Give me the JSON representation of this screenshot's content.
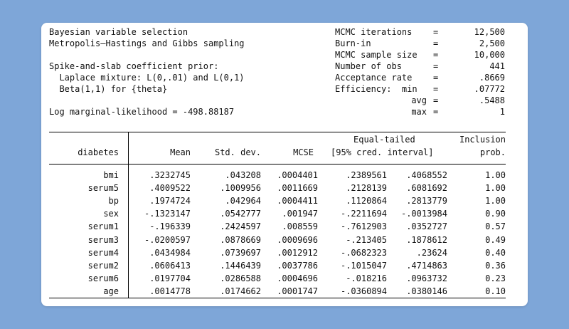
{
  "header_left": [
    "Bayesian variable selection",
    "Metropolis–Hastings and Gibbs sampling",
    "",
    "Spike-and-slab coefficient prior:",
    "  Laplace mixture: L(0,.01) and L(0,1)",
    "  Beta(1,1) for {theta}",
    "",
    "Log marginal-likelihood = -498.88187"
  ],
  "header_right": [
    {
      "label": "MCMC iterations",
      "eq": "=",
      "value": "12,500"
    },
    {
      "label": "Burn-in",
      "eq": "=",
      "value": "2,500"
    },
    {
      "label": "MCMC sample size",
      "eq": "=",
      "value": "10,000"
    },
    {
      "label": "Number of obs",
      "eq": "=",
      "value": "441"
    },
    {
      "label": "Acceptance rate",
      "eq": "=",
      "value": ".8669"
    },
    {
      "label": "Efficiency:  min",
      "eq": "=",
      "value": ".07772"
    },
    {
      "label": "avg",
      "eq": "=",
      "value": ".5488"
    },
    {
      "label": "max",
      "eq": "=",
      "value": "1"
    }
  ],
  "table": {
    "depvar": "diabetes",
    "header_top": {
      "interval": "Equal-tailed",
      "inclusion": "Inclusion"
    },
    "columns": [
      "Mean",
      "Std. dev.",
      "MCSE",
      "[95% cred. interval]",
      "prob."
    ],
    "rows": [
      {
        "name": "bmi",
        "mean": ".3232745",
        "sd": ".043208",
        "mcse": ".0004401",
        "lo": ".2389561",
        "hi": ".4068552",
        "prob": "1.00"
      },
      {
        "name": "serum5",
        "mean": ".4009522",
        "sd": ".1009956",
        "mcse": ".0011669",
        "lo": ".2128139",
        "hi": ".6081692",
        "prob": "1.00"
      },
      {
        "name": "bp",
        "mean": ".1974724",
        "sd": ".042964",
        "mcse": ".0004411",
        "lo": ".1120864",
        "hi": ".2813779",
        "prob": "1.00"
      },
      {
        "name": "sex",
        "mean": "-.1323147",
        "sd": ".0542777",
        "mcse": ".001947",
        "lo": "-.2211694",
        "hi": "-.0013984",
        "prob": "0.90"
      },
      {
        "name": "serum1",
        "mean": "-.196339",
        "sd": ".2424597",
        "mcse": ".008559",
        "lo": "-.7612903",
        "hi": ".0352727",
        "prob": "0.57"
      },
      {
        "name": "serum3",
        "mean": "-.0200597",
        "sd": ".0878669",
        "mcse": ".0009696",
        "lo": "-.213405",
        "hi": ".1878612",
        "prob": "0.49"
      },
      {
        "name": "serum4",
        "mean": ".0434984",
        "sd": ".0739697",
        "mcse": ".0012912",
        "lo": "-.0682323",
        "hi": ".23624",
        "prob": "0.40"
      },
      {
        "name": "serum2",
        "mean": ".0606413",
        "sd": ".1446439",
        "mcse": ".0037786",
        "lo": "-.1015047",
        "hi": ".4714863",
        "prob": "0.36"
      },
      {
        "name": "serum6",
        "mean": ".0197704",
        "sd": ".0286588",
        "mcse": ".0004696",
        "lo": "-.018216",
        "hi": ".0963732",
        "prob": "0.23"
      },
      {
        "name": "age",
        "mean": ".0014778",
        "sd": ".0174662",
        "mcse": ".0001747",
        "lo": "-.0360894",
        "hi": ".0380146",
        "prob": "0.10"
      }
    ]
  }
}
